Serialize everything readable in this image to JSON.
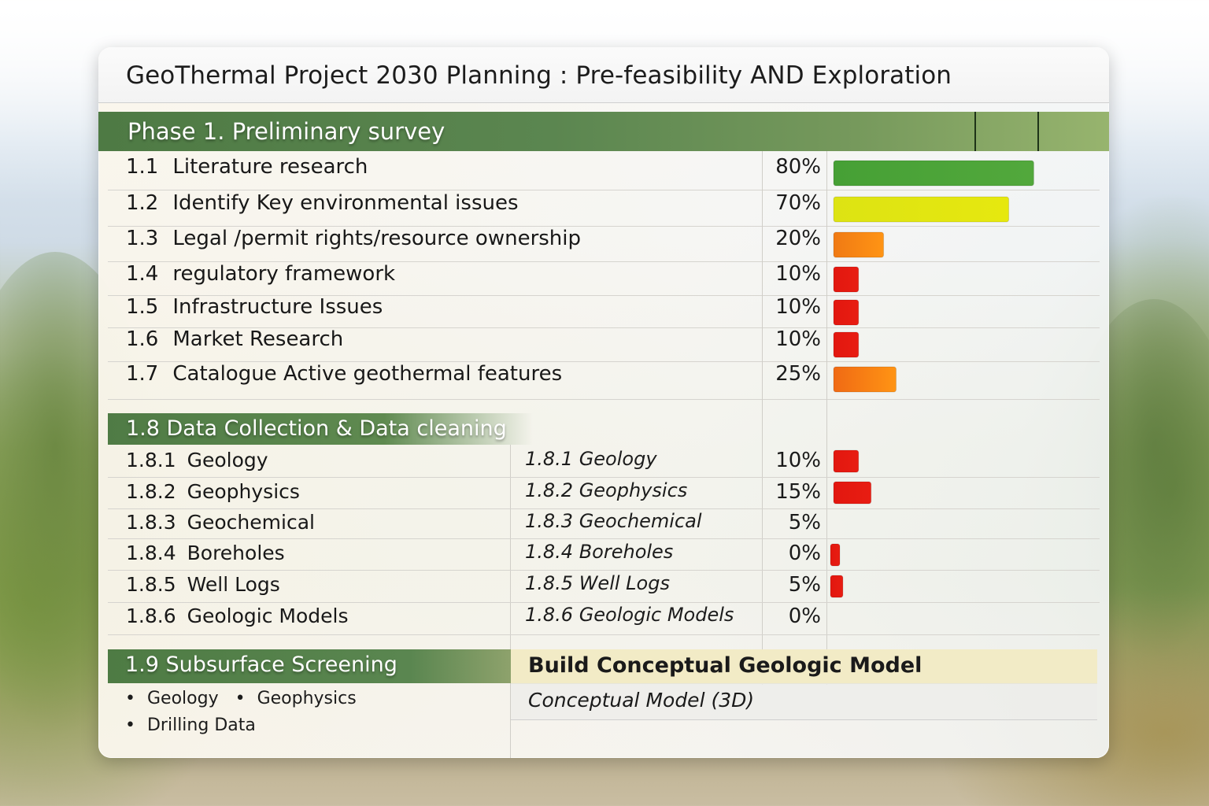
{
  "title": "GeoThermal Project 2030 Planning : Pre-feasibility AND Exploration",
  "phase": {
    "label": "Phase 1. Preliminary survey"
  },
  "tasks": [
    {
      "num": "1.1",
      "label": "Literature research",
      "pct_text": "80%"
    },
    {
      "num": "1.2",
      "label": "Identify Key environmental issues",
      "pct_text": "70%"
    },
    {
      "num": "1.3",
      "label": "Legal /permit rights/resource ownership",
      "pct_text": "20%"
    },
    {
      "num": "1.4",
      "label": "regulatory framework",
      "pct_text": "10%"
    },
    {
      "num": "1.5",
      "label": "Infrastructure Issues",
      "pct_text": "10%"
    },
    {
      "num": "1.6",
      "label": "Market Research",
      "pct_text": "10%"
    },
    {
      "num": "1.7",
      "label": "Catalogue Active geothermal features",
      "pct_text": "25%"
    }
  ],
  "data_collection": {
    "header": "1.8 Data Collection & Data cleaning",
    "items": [
      {
        "num": "1.8.1",
        "label": "Geology",
        "italic": "1.8.1 Geology",
        "pct_text": "10%"
      },
      {
        "num": "1.8.2",
        "label": "Geophysics",
        "italic": "1.8.2 Geophysics",
        "pct_text": "15%"
      },
      {
        "num": "1.8.3",
        "label": "Geochemical",
        "italic": "1.8.3 Geochemical",
        "pct_text": "5%"
      },
      {
        "num": "1.8.4",
        "label": "Boreholes",
        "italic": "1.8.4 Boreholes",
        "pct_text": "0%"
      },
      {
        "num": "1.8.5",
        "label": "Well Logs",
        "italic": "1.8.5 Well Logs",
        "pct_text": "5%"
      },
      {
        "num": "1.8.6",
        "label": "Geologic Models",
        "italic": "1.8.6 Geologic Models",
        "pct_text": "0%"
      }
    ]
  },
  "subsurface": {
    "header": "1.9 Subsurface Screening",
    "bullets": [
      "Geology",
      "Geophysics",
      "Drilling Data"
    ],
    "bullet_char": "•"
  },
  "conceptual": {
    "header": "Build Conceptual Geologic Model",
    "sub": "Conceptual Model (3D)"
  },
  "colors": {
    "phase_green": "#5b8650",
    "bar_green": "#46a035",
    "bar_yellow": "#dde313",
    "bar_orange": "#f07a14",
    "bar_red": "#e2170f",
    "concept_bg": "#f2ebc6"
  },
  "chart_data": {
    "type": "bar",
    "orientation": "horizontal",
    "title": "GeoThermal Project 2030 Planning : Pre-feasibility AND Exploration",
    "xlabel": "",
    "ylabel": "",
    "xlim": [
      0,
      100
    ],
    "grid": false,
    "legend": "none",
    "categories": [
      "1.1 Literature research",
      "1.2 Identify Key environmental issues",
      "1.3 Legal /permit rights/resource ownership",
      "1.4 regulatory framework",
      "1.5 Infrastructure Issues",
      "1.6 Market Research",
      "1.7 Catalogue Active geothermal features",
      "1.8.1 Geology",
      "1.8.2 Geophysics",
      "1.8.3 Geochemical",
      "1.8.4 Boreholes",
      "1.8.5 Well Logs",
      "1.8.6 Geologic Models"
    ],
    "values": [
      80,
      70,
      20,
      10,
      10,
      10,
      25,
      10,
      15,
      5,
      0,
      5,
      0
    ],
    "bar_shown": [
      true,
      true,
      true,
      true,
      true,
      true,
      true,
      true,
      true,
      false,
      true,
      true,
      false
    ],
    "bar_colors": [
      "#46a035",
      "#dde313",
      "#f07a14",
      "#e2170f",
      "#e2170f",
      "#e2170f",
      "#f06a14",
      "#e2170f",
      "#e2170f",
      "",
      "#e2170f",
      "#e2170f",
      ""
    ]
  }
}
